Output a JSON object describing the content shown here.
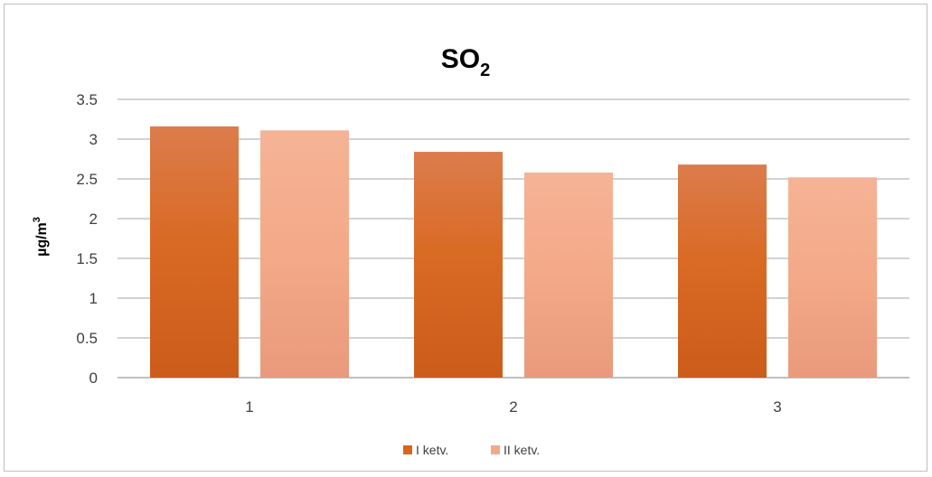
{
  "chart_data": {
    "type": "bar",
    "title": "SO",
    "title_subscript": "2",
    "ylabel": "µg/m",
    "ylabel_superscript": "3",
    "xlabel": "",
    "categories": [
      "1",
      "2",
      "3"
    ],
    "ylim": [
      0,
      3.5
    ],
    "yticks": [
      0,
      0.5,
      1,
      1.5,
      2,
      2.5,
      3,
      3.5
    ],
    "ytick_labels": [
      "0",
      "0.5",
      "1",
      "1.5",
      "2",
      "2.5",
      "3",
      "3.5"
    ],
    "grid": true,
    "legend_position": "bottom",
    "series": [
      {
        "name": "I ketv.",
        "values": [
          3.16,
          2.84,
          2.68
        ],
        "color": "#d8651f",
        "color_top": "#dc7c4c"
      },
      {
        "name": "II ketv.",
        "values": [
          3.11,
          2.58,
          2.52
        ],
        "color": "#f2a98a",
        "color_top": "#f5b396"
      }
    ]
  }
}
